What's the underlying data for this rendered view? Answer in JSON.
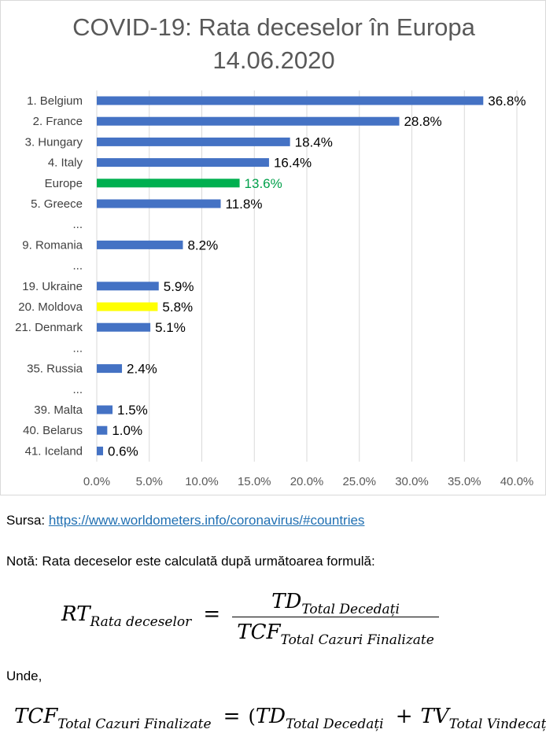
{
  "title_line1": "COVID-19: Rata deceselor în Europa",
  "title_line2": "14.06.2020",
  "chart_data": {
    "type": "bar",
    "orientation": "horizontal",
    "categories": [
      "1. Belgium",
      "2. France",
      "3. Hungary",
      "4. Italy",
      "Europe",
      "5. Greece",
      "...",
      "9. Romania",
      "...",
      "19. Ukraine",
      "20. Moldova",
      "21. Denmark",
      "...",
      "35. Russia",
      "...",
      "39. Malta",
      "40. Belarus",
      "41. Iceland"
    ],
    "values": [
      36.8,
      28.8,
      18.4,
      16.4,
      13.6,
      11.8,
      null,
      8.2,
      null,
      5.9,
      5.8,
      5.1,
      null,
      2.4,
      null,
      1.5,
      1.0,
      0.6
    ],
    "data_labels": [
      "36.8%",
      "28.8%",
      "18.4%",
      "16.4%",
      "13.6%",
      "11.8%",
      "",
      "8.2%",
      "",
      "5.9%",
      "5.8%",
      "5.1%",
      "",
      "2.4%",
      "",
      "1.5%",
      "1.0%",
      "0.6%"
    ],
    "bar_colors": [
      "#4472c4",
      "#4472c4",
      "#4472c4",
      "#4472c4",
      "#00b050",
      "#4472c4",
      "",
      "#4472c4",
      "",
      "#4472c4",
      "#ffff00",
      "#4472c4",
      "",
      "#4472c4",
      "",
      "#4472c4",
      "#4472c4",
      "#4472c4"
    ],
    "label_colors": [
      "#000000",
      "#000000",
      "#000000",
      "#000000",
      "#00a04a",
      "#000000",
      "",
      "#000000",
      "",
      "#000000",
      "#000000",
      "#000000",
      "",
      "#000000",
      "",
      "#000000",
      "#000000",
      "#000000"
    ],
    "x_ticks": [
      "0.0%",
      "5.0%",
      "10.0%",
      "15.0%",
      "20.0%",
      "25.0%",
      "30.0%",
      "35.0%",
      "40.0%"
    ],
    "xlim": [
      0,
      40
    ],
    "grid": true,
    "legend": "none"
  },
  "source": {
    "label": "Sursa:",
    "url_text": "https://www.worldometers.info/coronavirus/#countries"
  },
  "note": "Notă: Rata deceselor este calculată după următoarea formulă:",
  "formula1": {
    "lhs": "RT",
    "lhs_sub": "Rata deceselor",
    "eq": "=",
    "num": "TD",
    "num_sub": "Total Decedați",
    "den": "TCF",
    "den_sub": "Total Cazuri Finalizate"
  },
  "unde": "Unde,",
  "formula2": {
    "lhs": "TCF",
    "lhs_sub": "Total Cazuri Finalizate",
    "eq": "=",
    "open": "(",
    "a": "TD",
    "a_sub": "Total Decedați",
    "plus": "+",
    "b": "TV",
    "b_sub": "Total Vindecați",
    "close": ")"
  }
}
